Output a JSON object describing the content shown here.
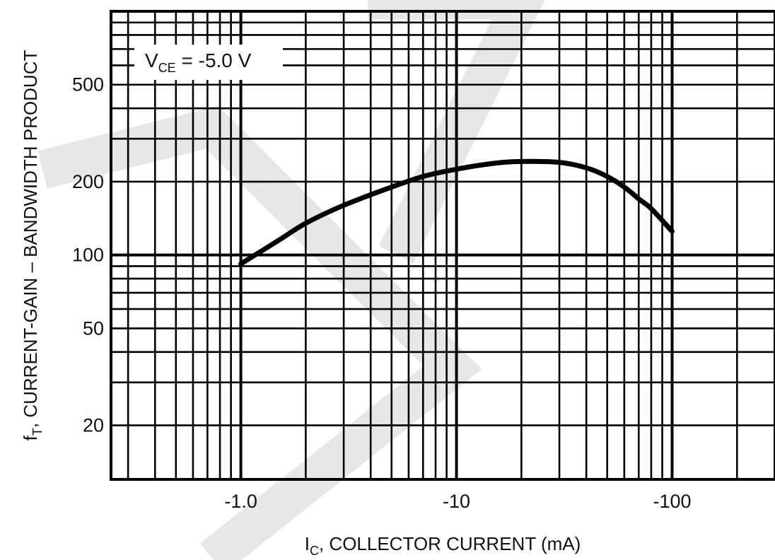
{
  "chart_data": {
    "type": "line",
    "xlabel": {
      "main": "I",
      "sub": "C",
      "rest": ", COLLECTOR CURRENT (mA)"
    },
    "ylabel": {
      "main": "f",
      "sub": "T",
      "rest": ", CURRENT-GAIN – BANDWIDTH PRODUCT"
    },
    "x_scale": "log",
    "y_scale": "log",
    "xlim": [
      -0.25,
      -300
    ],
    "ylim": [
      12,
      1000
    ],
    "x_ticks": [
      {
        "value": -1.0,
        "label": "-1.0"
      },
      {
        "value": -10,
        "label": "-10"
      },
      {
        "value": -100,
        "label": "-100"
      }
    ],
    "y_ticks": [
      {
        "value": 20,
        "label": "20"
      },
      {
        "value": 50,
        "label": "50"
      },
      {
        "value": 100,
        "label": "100"
      },
      {
        "value": 200,
        "label": "200"
      },
      {
        "value": 500,
        "label": "500"
      }
    ],
    "grid": true,
    "annotation": {
      "main": "V",
      "sub": "CE",
      "rest": " = -5.0 V"
    },
    "series": [
      {
        "x": [
          -1.0,
          -1.5,
          -2.0,
          -3.0,
          -5.0,
          -7.0,
          -10,
          -15,
          -20,
          -30,
          -40,
          -50,
          -60,
          -70,
          -80,
          -100
        ],
        "y": [
          92,
          115,
          135,
          160,
          190,
          210,
          225,
          238,
          242,
          240,
          228,
          210,
          190,
          170,
          155,
          125
        ]
      }
    ]
  }
}
